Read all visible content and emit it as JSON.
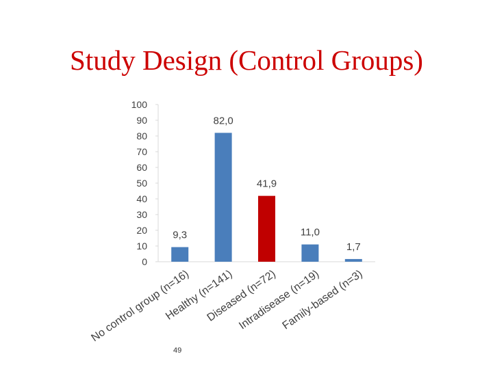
{
  "slide": {
    "title": "Study Design (Control Groups)",
    "page_number": "49"
  },
  "colors": {
    "title": "#cc0000",
    "bar_default": "#4a7ebb",
    "bar_highlight": "#c00000",
    "axis_text": "#404040",
    "axis_line": "#d9d9d9"
  },
  "chart_data": {
    "type": "bar",
    "title": "",
    "xlabel": "",
    "ylabel": "",
    "ylim": [
      0,
      100
    ],
    "yticks": [
      "0",
      "10",
      "20",
      "30",
      "40",
      "50",
      "60",
      "70",
      "80",
      "90",
      "100"
    ],
    "categories": [
      "No control group (n=16)",
      "Healthy (n=141)",
      "Diseased (n=72)",
      "Intradisease (n=19)",
      "Family-based (n=3)"
    ],
    "values": [
      9.3,
      82.0,
      41.9,
      11.0,
      1.7
    ],
    "data_labels": [
      "9,3",
      "82,0",
      "41,9",
      "11,0",
      "1,7"
    ],
    "highlight_index": 2,
    "grid": false,
    "legend": "none"
  }
}
